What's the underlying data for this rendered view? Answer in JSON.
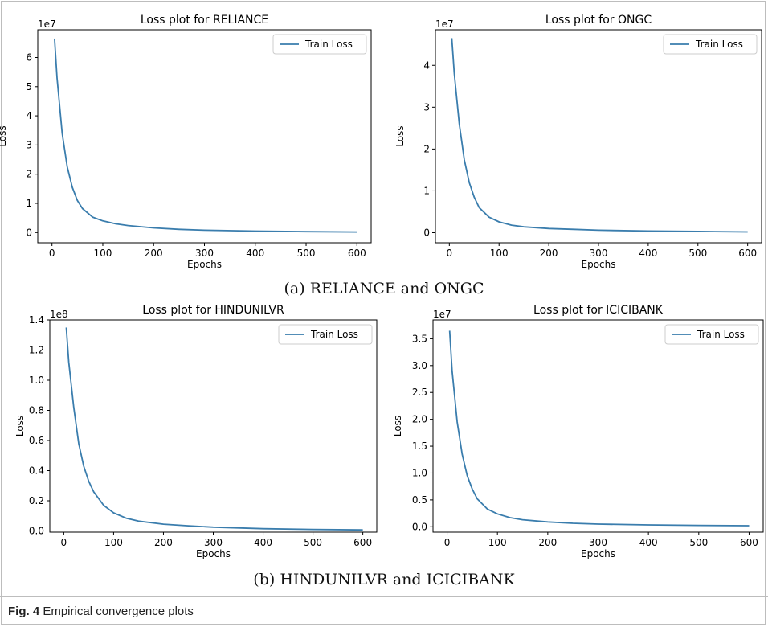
{
  "figure": {
    "caption_label": "Fig. 4",
    "caption_text": "Empirical convergence plots",
    "subcaption_a": "(a) RELIANCE and ONGC",
    "subcaption_b": "(b) HINDUNILVR and ICICIBANK",
    "line_color": "#3a7dad"
  },
  "chart_data": [
    {
      "type": "line",
      "title": "Loss plot for RELIANCE",
      "xlabel": "Epochs",
      "ylabel": "Loss",
      "scale_label": "1e7",
      "legend": "Train Loss",
      "legend_position": "top-right",
      "grid": false,
      "xlim": [
        -28,
        628
      ],
      "ylim": [
        -0.35,
        6.95
      ],
      "xticks": [
        0,
        100,
        200,
        300,
        400,
        500,
        600
      ],
      "yticks": [
        0,
        1,
        2,
        3,
        4,
        5,
        6
      ],
      "series": [
        {
          "name": "Train Loss",
          "x": [
            5,
            10,
            20,
            30,
            40,
            50,
            60,
            80,
            100,
            125,
            150,
            200,
            250,
            300,
            400,
            500,
            600
          ],
          "y": [
            6.65,
            5.3,
            3.4,
            2.25,
            1.55,
            1.1,
            0.82,
            0.53,
            0.4,
            0.3,
            0.24,
            0.16,
            0.11,
            0.08,
            0.05,
            0.03,
            0.02
          ]
        }
      ]
    },
    {
      "type": "line",
      "title": "Loss plot for ONGC",
      "xlabel": "Epochs",
      "ylabel": "Loss",
      "scale_label": "1e7",
      "legend": "Train Loss",
      "legend_position": "top-right",
      "grid": false,
      "xlim": [
        -28,
        628
      ],
      "ylim": [
        -0.24,
        4.85
      ],
      "xticks": [
        0,
        100,
        200,
        300,
        400,
        500,
        600
      ],
      "yticks": [
        0,
        1,
        2,
        3,
        4
      ],
      "series": [
        {
          "name": "Train Loss",
          "x": [
            5,
            10,
            20,
            30,
            40,
            50,
            60,
            80,
            100,
            125,
            150,
            200,
            250,
            300,
            400,
            500,
            600
          ],
          "y": [
            4.65,
            3.8,
            2.6,
            1.75,
            1.2,
            0.85,
            0.6,
            0.37,
            0.26,
            0.18,
            0.14,
            0.1,
            0.08,
            0.06,
            0.04,
            0.03,
            0.02
          ]
        }
      ]
    },
    {
      "type": "line",
      "title": "Loss plot for HINDUNILVR",
      "xlabel": "Epochs",
      "ylabel": "Loss",
      "scale_label": "1e8",
      "legend": "Train Loss",
      "legend_position": "top-right",
      "grid": false,
      "xlim": [
        -28,
        628
      ],
      "ylim": [
        -0.008,
        1.4
      ],
      "xticks": [
        0,
        100,
        200,
        300,
        400,
        500,
        600
      ],
      "yticks": [
        0.0,
        0.2,
        0.4,
        0.6,
        0.8,
        1.0,
        1.2,
        1.4
      ],
      "ytick_labels": [
        "0.0",
        "0.2",
        "0.4",
        "0.6",
        "0.8",
        "1.0",
        "1.2",
        "1.4"
      ],
      "series": [
        {
          "name": "Train Loss",
          "x": [
            5,
            10,
            20,
            30,
            40,
            50,
            60,
            80,
            100,
            125,
            150,
            200,
            250,
            300,
            400,
            500,
            600
          ],
          "y": [
            1.35,
            1.12,
            0.82,
            0.58,
            0.43,
            0.33,
            0.26,
            0.17,
            0.12,
            0.085,
            0.065,
            0.045,
            0.034,
            0.025,
            0.015,
            0.01,
            0.007
          ]
        }
      ]
    },
    {
      "type": "line",
      "title": "Loss plot for ICICIBANK",
      "xlabel": "Epochs",
      "ylabel": "Loss",
      "scale_label": "1e7",
      "legend": "Train Loss",
      "legend_position": "top-right",
      "grid": false,
      "xlim": [
        -28,
        628
      ],
      "ylim": [
        -0.1,
        3.85
      ],
      "xticks": [
        0,
        100,
        200,
        300,
        400,
        500,
        600
      ],
      "yticks": [
        0.0,
        0.5,
        1.0,
        1.5,
        2.0,
        2.5,
        3.0,
        3.5
      ],
      "ytick_labels": [
        "0.0",
        "0.5",
        "1.0",
        "1.5",
        "2.0",
        "2.5",
        "3.0",
        "3.5"
      ],
      "series": [
        {
          "name": "Train Loss",
          "x": [
            5,
            10,
            20,
            30,
            40,
            50,
            60,
            80,
            100,
            125,
            150,
            200,
            250,
            300,
            400,
            500,
            600
          ],
          "y": [
            3.65,
            2.9,
            1.95,
            1.35,
            0.95,
            0.7,
            0.52,
            0.33,
            0.24,
            0.17,
            0.13,
            0.09,
            0.065,
            0.05,
            0.035,
            0.025,
            0.02
          ]
        }
      ]
    }
  ]
}
